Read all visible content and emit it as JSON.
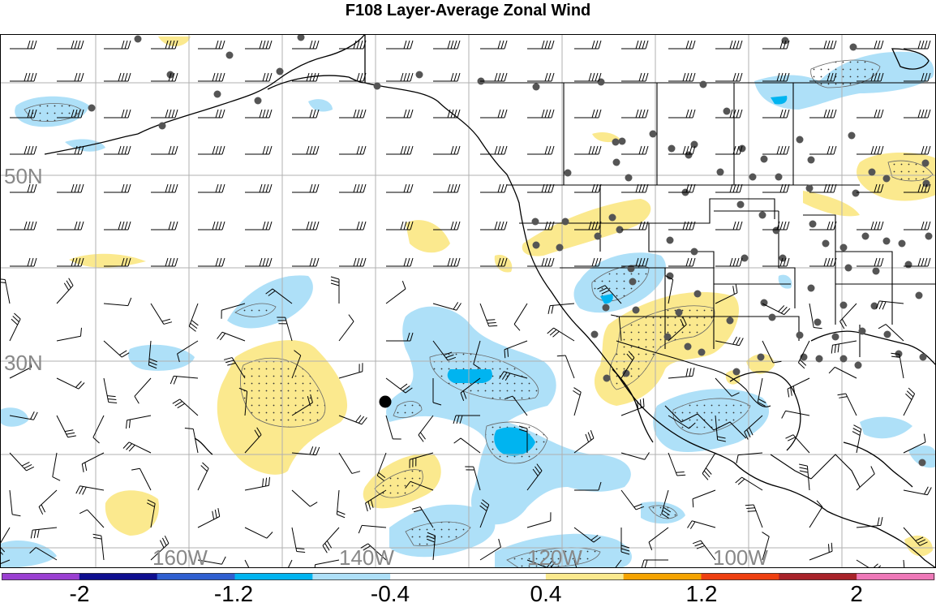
{
  "title": "F108 Layer-Average Zonal Wind",
  "lat_labels": [
    "50N",
    "30N"
  ],
  "lon_labels": [
    "160W",
    "140W",
    "120W",
    "100W"
  ],
  "colorbar": {
    "ticks": [
      "-2",
      "-1.2",
      "-0.4",
      "0.4",
      "1.2",
      "2"
    ],
    "colors": [
      "#9a3fd1",
      "#0f0f8f",
      "#2f5fd0",
      "#00b4f0",
      "#aee0f8",
      "#ffffff",
      "#ffffff",
      "#fbe98e",
      "#f4a300",
      "#ee4011",
      "#a8232a",
      "#ee78b8"
    ]
  },
  "colors": {
    "pos_light": "#fbe98e",
    "neg_light": "#aee0f8",
    "neg_mid": "#00b4f0",
    "coast": "#000000",
    "grid": "#b0b0b0",
    "station": "#555555"
  }
}
